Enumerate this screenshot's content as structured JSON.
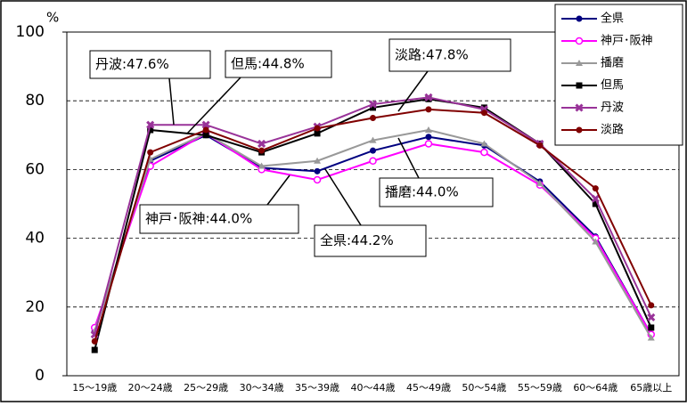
{
  "chart_data": {
    "type": "line",
    "y_unit": "%",
    "categories": [
      "15～19歳",
      "20～24歳",
      "25～29歳",
      "30～34歳",
      "35～39歳",
      "40～44歳",
      "45～49歳",
      "50～54歳",
      "55～59歳",
      "60～64歳",
      "65歳以上"
    ],
    "series": [
      {
        "name": "全県",
        "color": "#000080",
        "marker": "circle",
        "values": [
          13,
          62.5,
          70,
          60.5,
          59.5,
          65.5,
          69.5,
          67,
          56.5,
          40.5,
          12
        ]
      },
      {
        "name": "神戸･阪神",
        "color": "#ff00ff",
        "marker": "circle-open",
        "values": [
          14,
          61,
          70.5,
          60,
          57,
          62.5,
          67.5,
          65,
          55.5,
          40,
          12
        ]
      },
      {
        "name": "播磨",
        "color": "#999999",
        "marker": "triangle",
        "values": [
          13,
          63,
          70.5,
          61,
          62.5,
          68.5,
          71.5,
          67.5,
          56,
          39,
          11
        ]
      },
      {
        "name": "但馬",
        "color": "#000000",
        "marker": "square",
        "values": [
          7.5,
          71.5,
          70,
          65,
          70.5,
          78,
          80.5,
          78,
          67.5,
          50,
          14
        ]
      },
      {
        "name": "丹波",
        "color": "#993399",
        "marker": "x",
        "values": [
          12,
          73,
          73,
          67.5,
          72.5,
          79,
          81,
          77.5,
          67.5,
          51.5,
          17
        ]
      },
      {
        "name": "淡路",
        "color": "#800000",
        "marker": "circle",
        "values": [
          10,
          65,
          71.5,
          65.5,
          72,
          75,
          77.5,
          76.5,
          67,
          54.5,
          20.5
        ]
      }
    ],
    "annotations": [
      "丹波:47.6%",
      "但馬:44.8%",
      "淡路:47.8%",
      "播磨:44.0%",
      "神戸･阪神:44.0%",
      "全県:44.2%"
    ],
    "ylim": [
      0,
      100
    ],
    "yticks": [
      0,
      20,
      40,
      60,
      80,
      100
    ],
    "grid": true,
    "legend": "top-right"
  }
}
